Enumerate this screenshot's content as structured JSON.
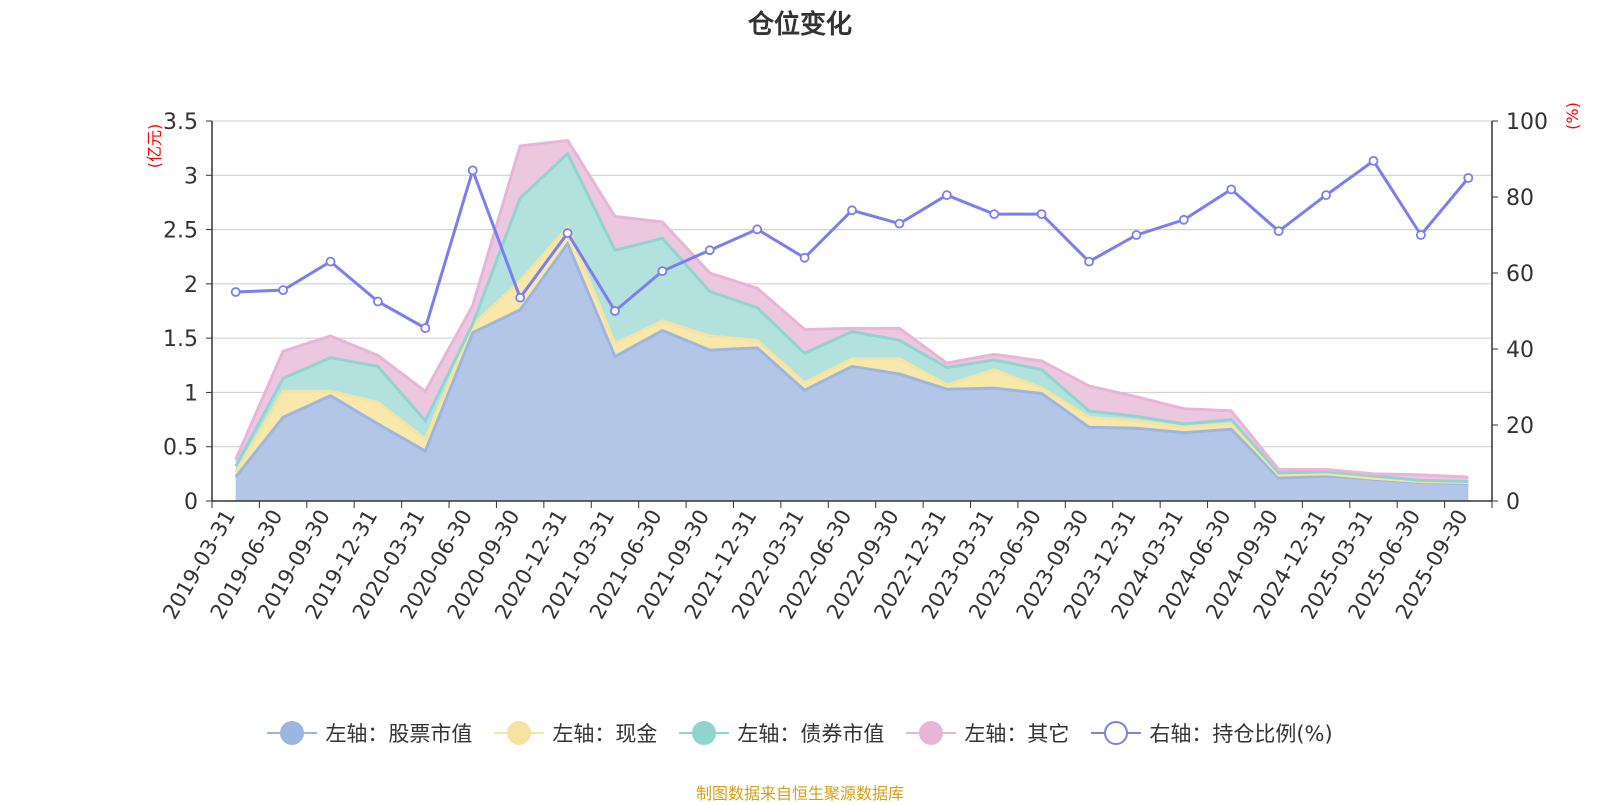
{
  "chart_data": {
    "type": "area",
    "title": "仓位变化",
    "left_axis_label": "(亿元)",
    "right_axis_label": "(%)",
    "left_ylim": [
      0,
      3.5
    ],
    "left_ticks": [
      "0",
      "0.5",
      "1",
      "1.5",
      "2",
      "2.5",
      "3",
      "3.5"
    ],
    "right_ylim": [
      0,
      100
    ],
    "right_ticks": [
      "0",
      "20",
      "40",
      "60",
      "80",
      "100"
    ],
    "categories": [
      "2019-03-31",
      "2019-06-30",
      "2019-09-30",
      "2019-12-31",
      "2020-03-31",
      "2020-06-30",
      "2020-09-30",
      "2020-12-31",
      "2021-03-31",
      "2021-06-30",
      "2021-09-30",
      "2021-12-31",
      "2022-03-31",
      "2022-06-30",
      "2022-09-30",
      "2022-12-31",
      "2023-03-31",
      "2023-06-30",
      "2023-09-30",
      "2023-12-31",
      "2024-03-31",
      "2024-06-30",
      "2024-09-30",
      "2024-12-31",
      "2025-03-31",
      "2025-06-30",
      "2025-09-30"
    ],
    "stacked_series": [
      {
        "name": "左轴：股票市值",
        "color": "#9db6e0",
        "fill": "#b3c6e8",
        "values": [
          0.22,
          0.77,
          0.97,
          0.71,
          0.46,
          1.55,
          1.76,
          2.37,
          1.33,
          1.57,
          1.39,
          1.41,
          1.02,
          1.24,
          1.17,
          1.03,
          1.04,
          0.99,
          0.68,
          0.67,
          0.63,
          0.66,
          0.21,
          0.23,
          0.2,
          0.17,
          0.16
        ]
      },
      {
        "name": "左轴：现金",
        "color": "#f5e3a0",
        "fill": "#f8e8ac",
        "values": [
          0.04,
          0.24,
          0.04,
          0.2,
          0.11,
          0.07,
          0.27,
          0.15,
          0.12,
          0.09,
          0.13,
          0.07,
          0.07,
          0.07,
          0.14,
          0.04,
          0.17,
          0.05,
          0.09,
          0.07,
          0.05,
          0.05,
          0.03,
          0.02,
          0.01,
          0.01,
          0.01
        ]
      },
      {
        "name": "左轴：债券市值",
        "color": "#90d4d0",
        "fill": "#b2e1de",
        "values": [
          0.06,
          0.12,
          0.31,
          0.33,
          0.17,
          0.01,
          0.76,
          0.68,
          0.86,
          0.76,
          0.41,
          0.3,
          0.27,
          0.25,
          0.17,
          0.16,
          0.09,
          0.17,
          0.06,
          0.04,
          0.03,
          0.04,
          0.02,
          0.02,
          0.02,
          0.01,
          0.01
        ]
      },
      {
        "name": "左轴：其它",
        "color": "#e8b4d8",
        "fill": "#ecc8e0",
        "values": [
          0.06,
          0.25,
          0.2,
          0.1,
          0.27,
          0.17,
          0.48,
          0.12,
          0.31,
          0.15,
          0.17,
          0.18,
          0.22,
          0.03,
          0.11,
          0.04,
          0.05,
          0.08,
          0.23,
          0.18,
          0.14,
          0.08,
          0.03,
          0.02,
          0.02,
          0.05,
          0.04
        ]
      }
    ],
    "line_series": {
      "name": "右轴：持仓比例(%)",
      "color": "#7b7ef0",
      "values": [
        55,
        55.5,
        63,
        52.5,
        45.5,
        87,
        53.5,
        70.5,
        50,
        60.5,
        66,
        71.5,
        64,
        76.5,
        73,
        80.5,
        75.5,
        75.5,
        63,
        70,
        74,
        82,
        71,
        80.5,
        89.5,
        70,
        85
      ]
    }
  },
  "source_note": "制图数据来自恒生聚源数据库"
}
